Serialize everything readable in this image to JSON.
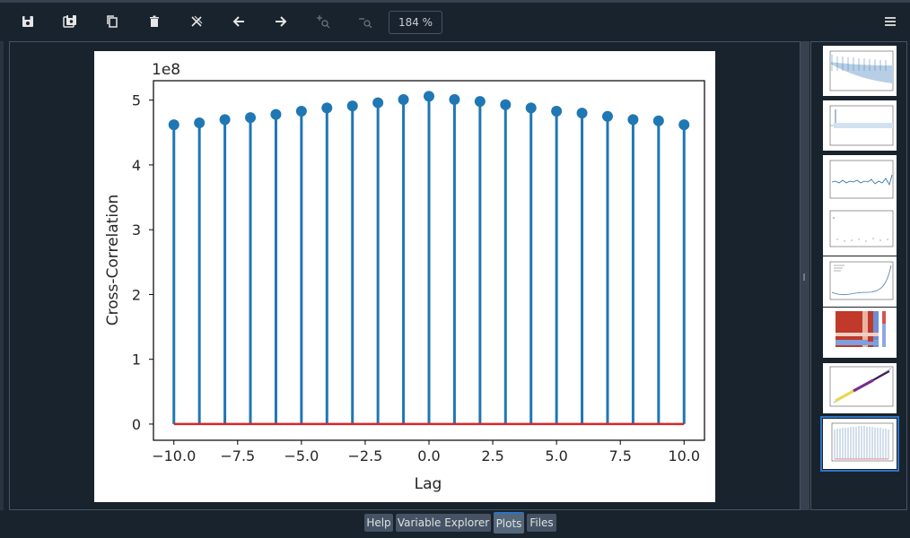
{
  "toolbar": {
    "buttons": [
      {
        "name": "save-icon"
      },
      {
        "name": "save-all-icon"
      },
      {
        "name": "copy-icon"
      },
      {
        "name": "delete-icon"
      },
      {
        "name": "close-all-icon"
      },
      {
        "name": "arrow-left-icon"
      },
      {
        "name": "arrow-right-icon"
      },
      {
        "name": "zoom-in-icon"
      },
      {
        "name": "zoom-out-icon"
      }
    ],
    "zoom_value": "184 %",
    "menu_icon": "hamburger-menu-icon"
  },
  "chart_data": {
    "type": "stem",
    "x": [
      -10,
      -9,
      -8,
      -7,
      -6,
      -5,
      -4,
      -3,
      -2,
      -1,
      0,
      1,
      2,
      3,
      4,
      5,
      6,
      7,
      8,
      9,
      10
    ],
    "values": [
      4.62,
      4.65,
      4.7,
      4.73,
      4.78,
      4.83,
      4.88,
      4.91,
      4.96,
      5.01,
      5.06,
      5.01,
      4.98,
      4.93,
      4.88,
      4.83,
      4.8,
      4.75,
      4.7,
      4.68,
      4.62
    ],
    "xlabel": "Lag",
    "ylabel": "Cross-Correlation",
    "offset_label": "1e8",
    "xlim": [
      -10.8,
      10.8
    ],
    "ylim": [
      -0.25,
      5.3
    ],
    "xticks": [
      "−10.0",
      "−7.5",
      "−5.0",
      "−2.5",
      "0.0",
      "2.5",
      "5.0",
      "7.5",
      "10.0"
    ],
    "xtick_values": [
      -10,
      -7.5,
      -5,
      -2.5,
      0,
      2.5,
      5,
      7.5,
      10
    ],
    "yticks": [
      "0",
      "1",
      "2",
      "3",
      "4",
      "5"
    ],
    "ytick_values": [
      0,
      1,
      2,
      3,
      4,
      5
    ],
    "colors": {
      "stem": "#1f77b4",
      "baseline": "#d62728"
    }
  },
  "thumbnails": [
    {
      "name": "autocorrelation-thumb"
    },
    {
      "name": "partial-autocorrelation-thumb"
    },
    {
      "name": "residuals-thumb"
    },
    {
      "name": "scatter-sparse-thumb"
    },
    {
      "name": "line-trend-thumb"
    },
    {
      "name": "heatmap-thumb"
    },
    {
      "name": "scatter-regression-thumb"
    },
    {
      "name": "cross-correlation-thumb",
      "selected": true
    }
  ],
  "tabs": [
    {
      "label": "Help"
    },
    {
      "label": "Variable Explorer"
    },
    {
      "label": "Plots",
      "active": true
    },
    {
      "label": "Files"
    }
  ]
}
